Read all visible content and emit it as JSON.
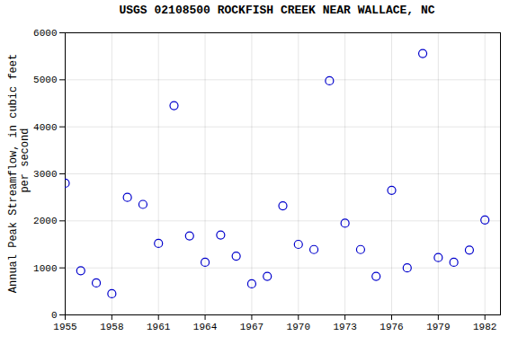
{
  "chart_data": {
    "type": "scatter",
    "title": "USGS 02108500 ROCKFISH CREEK NEAR WALLACE, NC",
    "ylabel": "Annual Peak Streamflow, in cubic feet\n    per second",
    "x": [
      1955,
      1956,
      1957,
      1958,
      1959,
      1960,
      1961,
      1962,
      1963,
      1964,
      1965,
      1966,
      1967,
      1968,
      1969,
      1970,
      1971,
      1972,
      1973,
      1974,
      1975,
      1976,
      1977,
      1978,
      1979,
      1980,
      1981,
      1982
    ],
    "values": [
      2800,
      940,
      680,
      450,
      2500,
      2350,
      1520,
      4450,
      1680,
      1120,
      1700,
      1250,
      660,
      820,
      2320,
      1500,
      1390,
      4980,
      1950,
      1390,
      820,
      2650,
      1000,
      5560,
      1220,
      1120,
      1380,
      2020
    ],
    "color": "#0000CC",
    "marker": "circle",
    "xlim": [
      1955,
      1983
    ],
    "ylim": [
      0,
      6000
    ],
    "xticks": [
      1955,
      1958,
      1961,
      1964,
      1967,
      1970,
      1973,
      1976,
      1979,
      1982
    ],
    "yticks": [
      0,
      1000,
      2000,
      3000,
      4000,
      5000,
      6000
    ],
    "grid": true
  }
}
